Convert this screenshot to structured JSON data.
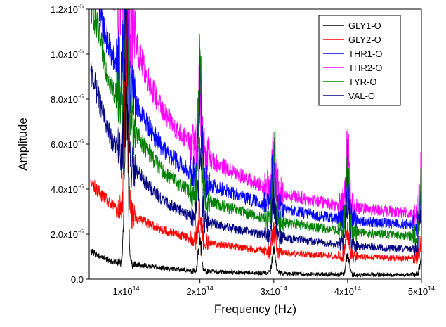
{
  "chart_data": {
    "type": "line",
    "xlabel": "Frequency (Hz)",
    "ylabel": "Amplitude",
    "xlim": [
      50000000000000.0,
      500000000000000.0
    ],
    "ylim": [
      0,
      1.2e-05
    ],
    "x_ticks": [
      {
        "value": 100000000000000.0,
        "mantissa": "1x10",
        "exp": "14"
      },
      {
        "value": 200000000000000.0,
        "mantissa": "2x10",
        "exp": "14"
      },
      {
        "value": 300000000000000.0,
        "mantissa": "3x10",
        "exp": "14"
      },
      {
        "value": 400000000000000.0,
        "mantissa": "4x10",
        "exp": "14"
      },
      {
        "value": 500000000000000.0,
        "mantissa": "5x10",
        "exp": "14"
      }
    ],
    "y_ticks": [
      {
        "value": 0,
        "mantissa": "0.0",
        "exp": ""
      },
      {
        "value": 2e-06,
        "mantissa": "2.0x10",
        "exp": "-6"
      },
      {
        "value": 4e-06,
        "mantissa": "4.0x10",
        "exp": "-6"
      },
      {
        "value": 6e-06,
        "mantissa": "6.0x10",
        "exp": "-6"
      },
      {
        "value": 8e-06,
        "mantissa": "8.0x10",
        "exp": "-6"
      },
      {
        "value": 1e-05,
        "mantissa": "1.0x10",
        "exp": "-5"
      },
      {
        "value": 1.2e-05,
        "mantissa": "1.2x10",
        "exp": "-5"
      }
    ],
    "peak_frequencies": [
      100000000000000.0,
      200000000000000.0,
      300000000000000.0,
      400000000000000.0,
      500000000000000.0
    ],
    "legend_position": "top-right",
    "series": [
      {
        "name": "GLY1-O",
        "color": "#000000",
        "baseline": [
          [
            55000000000000.0,
            1.2e-06
          ],
          [
            80000000000000.0,
            8e-07
          ],
          [
            105000000000000.0,
            7e-07
          ],
          [
            150000000000000.0,
            5e-07
          ],
          [
            200000000000000.0,
            3.5e-07
          ],
          [
            300000000000000.0,
            2.5e-07
          ],
          [
            400000000000000.0,
            2e-07
          ],
          [
            500000000000000.0,
            2e-07
          ]
        ],
        "peaks": [
          1.15e-05,
          2.1e-06,
          1.6e-06,
          1.4e-06,
          1.2e-06
        ]
      },
      {
        "name": "GLY2-O",
        "color": "#ff0000",
        "baseline": [
          [
            55000000000000.0,
            4.2e-06
          ],
          [
            80000000000000.0,
            3.3e-06
          ],
          [
            105000000000000.0,
            2.9e-06
          ],
          [
            150000000000000.0,
            2.2e-06
          ],
          [
            200000000000000.0,
            1.7e-06
          ],
          [
            300000000000000.0,
            1.2e-06
          ],
          [
            400000000000000.0,
            1e-06
          ],
          [
            500000000000000.0,
            9e-07
          ]
        ],
        "peaks": [
          1.2e-05,
          3.5e-06,
          2.6e-06,
          2.4e-06,
          2e-06
        ]
      },
      {
        "name": "THR1-O",
        "color": "#0000ff",
        "baseline": [
          [
            55000000000000.0,
            1.3e-05
          ],
          [
            80000000000000.0,
            1e-05
          ],
          [
            105000000000000.0,
            8.4e-06
          ],
          [
            150000000000000.0,
            5.8e-06
          ],
          [
            200000000000000.0,
            4.4e-06
          ],
          [
            300000000000000.0,
            3.2e-06
          ],
          [
            400000000000000.0,
            2.6e-06
          ],
          [
            500000000000000.0,
            2.4e-06
          ]
        ],
        "peaks": [
          1.2e-05,
          9.5e-06,
          5.5e-06,
          5e-06,
          4.2e-06
        ]
      },
      {
        "name": "THR2-O",
        "color": "#ff00ff",
        "baseline": [
          [
            55000000000000.0,
            1.4e-05
          ],
          [
            80000000000000.0,
            1.3e-05
          ],
          [
            105000000000000.0,
            1.12e-05
          ],
          [
            150000000000000.0,
            7.4e-06
          ],
          [
            200000000000000.0,
            5.6e-06
          ],
          [
            300000000000000.0,
            3.9e-06
          ],
          [
            400000000000000.0,
            3.2e-06
          ],
          [
            500000000000000.0,
            2.9e-06
          ]
        ],
        "peaks": [
          1.2e-05,
          9e-06,
          6.4e-06,
          6.6e-06,
          5.2e-06
        ]
      },
      {
        "name": "TYR-O",
        "color": "#008000",
        "baseline": [
          [
            55000000000000.0,
            1.2e-05
          ],
          [
            80000000000000.0,
            8.6e-06
          ],
          [
            105000000000000.0,
            7e-06
          ],
          [
            150000000000000.0,
            4.8e-06
          ],
          [
            200000000000000.0,
            3.6e-06
          ],
          [
            300000000000000.0,
            2.6e-06
          ],
          [
            400000000000000.0,
            2.1e-06
          ],
          [
            500000000000000.0,
            1.9e-06
          ]
        ],
        "peaks": [
          1.2e-05,
          1.16e-05,
          6e-06,
          5.8e-06,
          5.4e-06
        ]
      },
      {
        "name": "VAL-O",
        "color": "#000080",
        "baseline": [
          [
            55000000000000.0,
            9e-06
          ],
          [
            80000000000000.0,
            6.2e-06
          ],
          [
            105000000000000.0,
            5.2e-06
          ],
          [
            150000000000000.0,
            3.5e-06
          ],
          [
            200000000000000.0,
            2.6e-06
          ],
          [
            300000000000000.0,
            1.9e-06
          ],
          [
            400000000000000.0,
            1.5e-06
          ],
          [
            500000000000000.0,
            1.3e-06
          ]
        ],
        "peaks": [
          1.2e-05,
          6.5e-06,
          4.2e-06,
          4.4e-06,
          4e-06
        ]
      }
    ]
  }
}
